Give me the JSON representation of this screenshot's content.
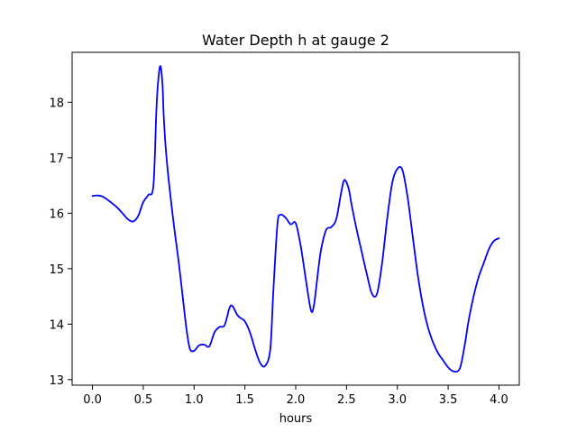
{
  "chart_data": {
    "type": "line",
    "title": "Water Depth h at gauge 2",
    "xlabel": "hours",
    "ylabel": "",
    "xlim": [
      -0.2,
      4.2
    ],
    "ylim": [
      12.9,
      18.9
    ],
    "xticks": [
      0.0,
      0.5,
      1.0,
      1.5,
      2.0,
      2.5,
      3.0,
      3.5,
      4.0
    ],
    "xtick_labels": [
      "0.0",
      "0.5",
      "1.0",
      "1.5",
      "2.0",
      "2.5",
      "3.0",
      "3.5",
      "4.0"
    ],
    "yticks": [
      13,
      14,
      15,
      16,
      17,
      18
    ],
    "ytick_labels": [
      "13",
      "14",
      "15",
      "16",
      "17",
      "18"
    ],
    "grid": false,
    "series": [
      {
        "color": "#0000ff",
        "x": [
          0.0,
          0.05,
          0.1,
          0.15,
          0.2,
          0.25,
          0.3,
          0.35,
          0.4,
          0.45,
          0.5,
          0.55,
          0.6,
          0.63,
          0.65,
          0.67,
          0.69,
          0.7,
          0.72,
          0.75,
          0.8,
          0.85,
          0.9,
          0.93,
          0.96,
          1.0,
          1.05,
          1.1,
          1.15,
          1.2,
          1.25,
          1.3,
          1.35,
          1.38,
          1.42,
          1.45,
          1.5,
          1.55,
          1.6,
          1.65,
          1.7,
          1.75,
          1.78,
          1.82,
          1.85,
          1.9,
          1.95,
          2.0,
          2.05,
          2.1,
          2.15,
          2.18,
          2.22,
          2.25,
          2.3,
          2.35,
          2.4,
          2.45,
          2.48,
          2.52,
          2.55,
          2.6,
          2.65,
          2.7,
          2.75,
          2.8,
          2.85,
          2.9,
          2.95,
          3.0,
          3.05,
          3.1,
          3.15,
          3.2,
          3.25,
          3.3,
          3.35,
          3.4,
          3.45,
          3.5,
          3.55,
          3.6,
          3.63,
          3.67,
          3.7,
          3.75,
          3.8,
          3.85,
          3.9,
          3.95,
          4.0
        ],
        "y": [
          16.31,
          16.32,
          16.3,
          16.24,
          16.17,
          16.09,
          15.99,
          15.89,
          15.85,
          15.95,
          16.2,
          16.33,
          16.5,
          17.9,
          18.45,
          18.65,
          18.3,
          17.8,
          17.2,
          16.6,
          15.8,
          15.1,
          14.3,
          13.85,
          13.55,
          13.52,
          13.62,
          13.63,
          13.6,
          13.85,
          13.95,
          13.98,
          14.3,
          14.32,
          14.18,
          14.12,
          14.05,
          13.85,
          13.55,
          13.3,
          13.25,
          13.55,
          14.6,
          15.8,
          15.97,
          15.92,
          15.8,
          15.82,
          15.4,
          14.8,
          14.25,
          14.35,
          14.95,
          15.35,
          15.7,
          15.75,
          15.9,
          16.4,
          16.6,
          16.45,
          16.15,
          15.7,
          15.3,
          14.9,
          14.55,
          14.55,
          15.1,
          15.9,
          16.55,
          16.8,
          16.78,
          16.3,
          15.6,
          14.9,
          14.35,
          13.95,
          13.68,
          13.48,
          13.35,
          13.22,
          13.15,
          13.16,
          13.3,
          13.7,
          14.05,
          14.5,
          14.85,
          15.1,
          15.35,
          15.5,
          15.55
        ]
      }
    ]
  }
}
